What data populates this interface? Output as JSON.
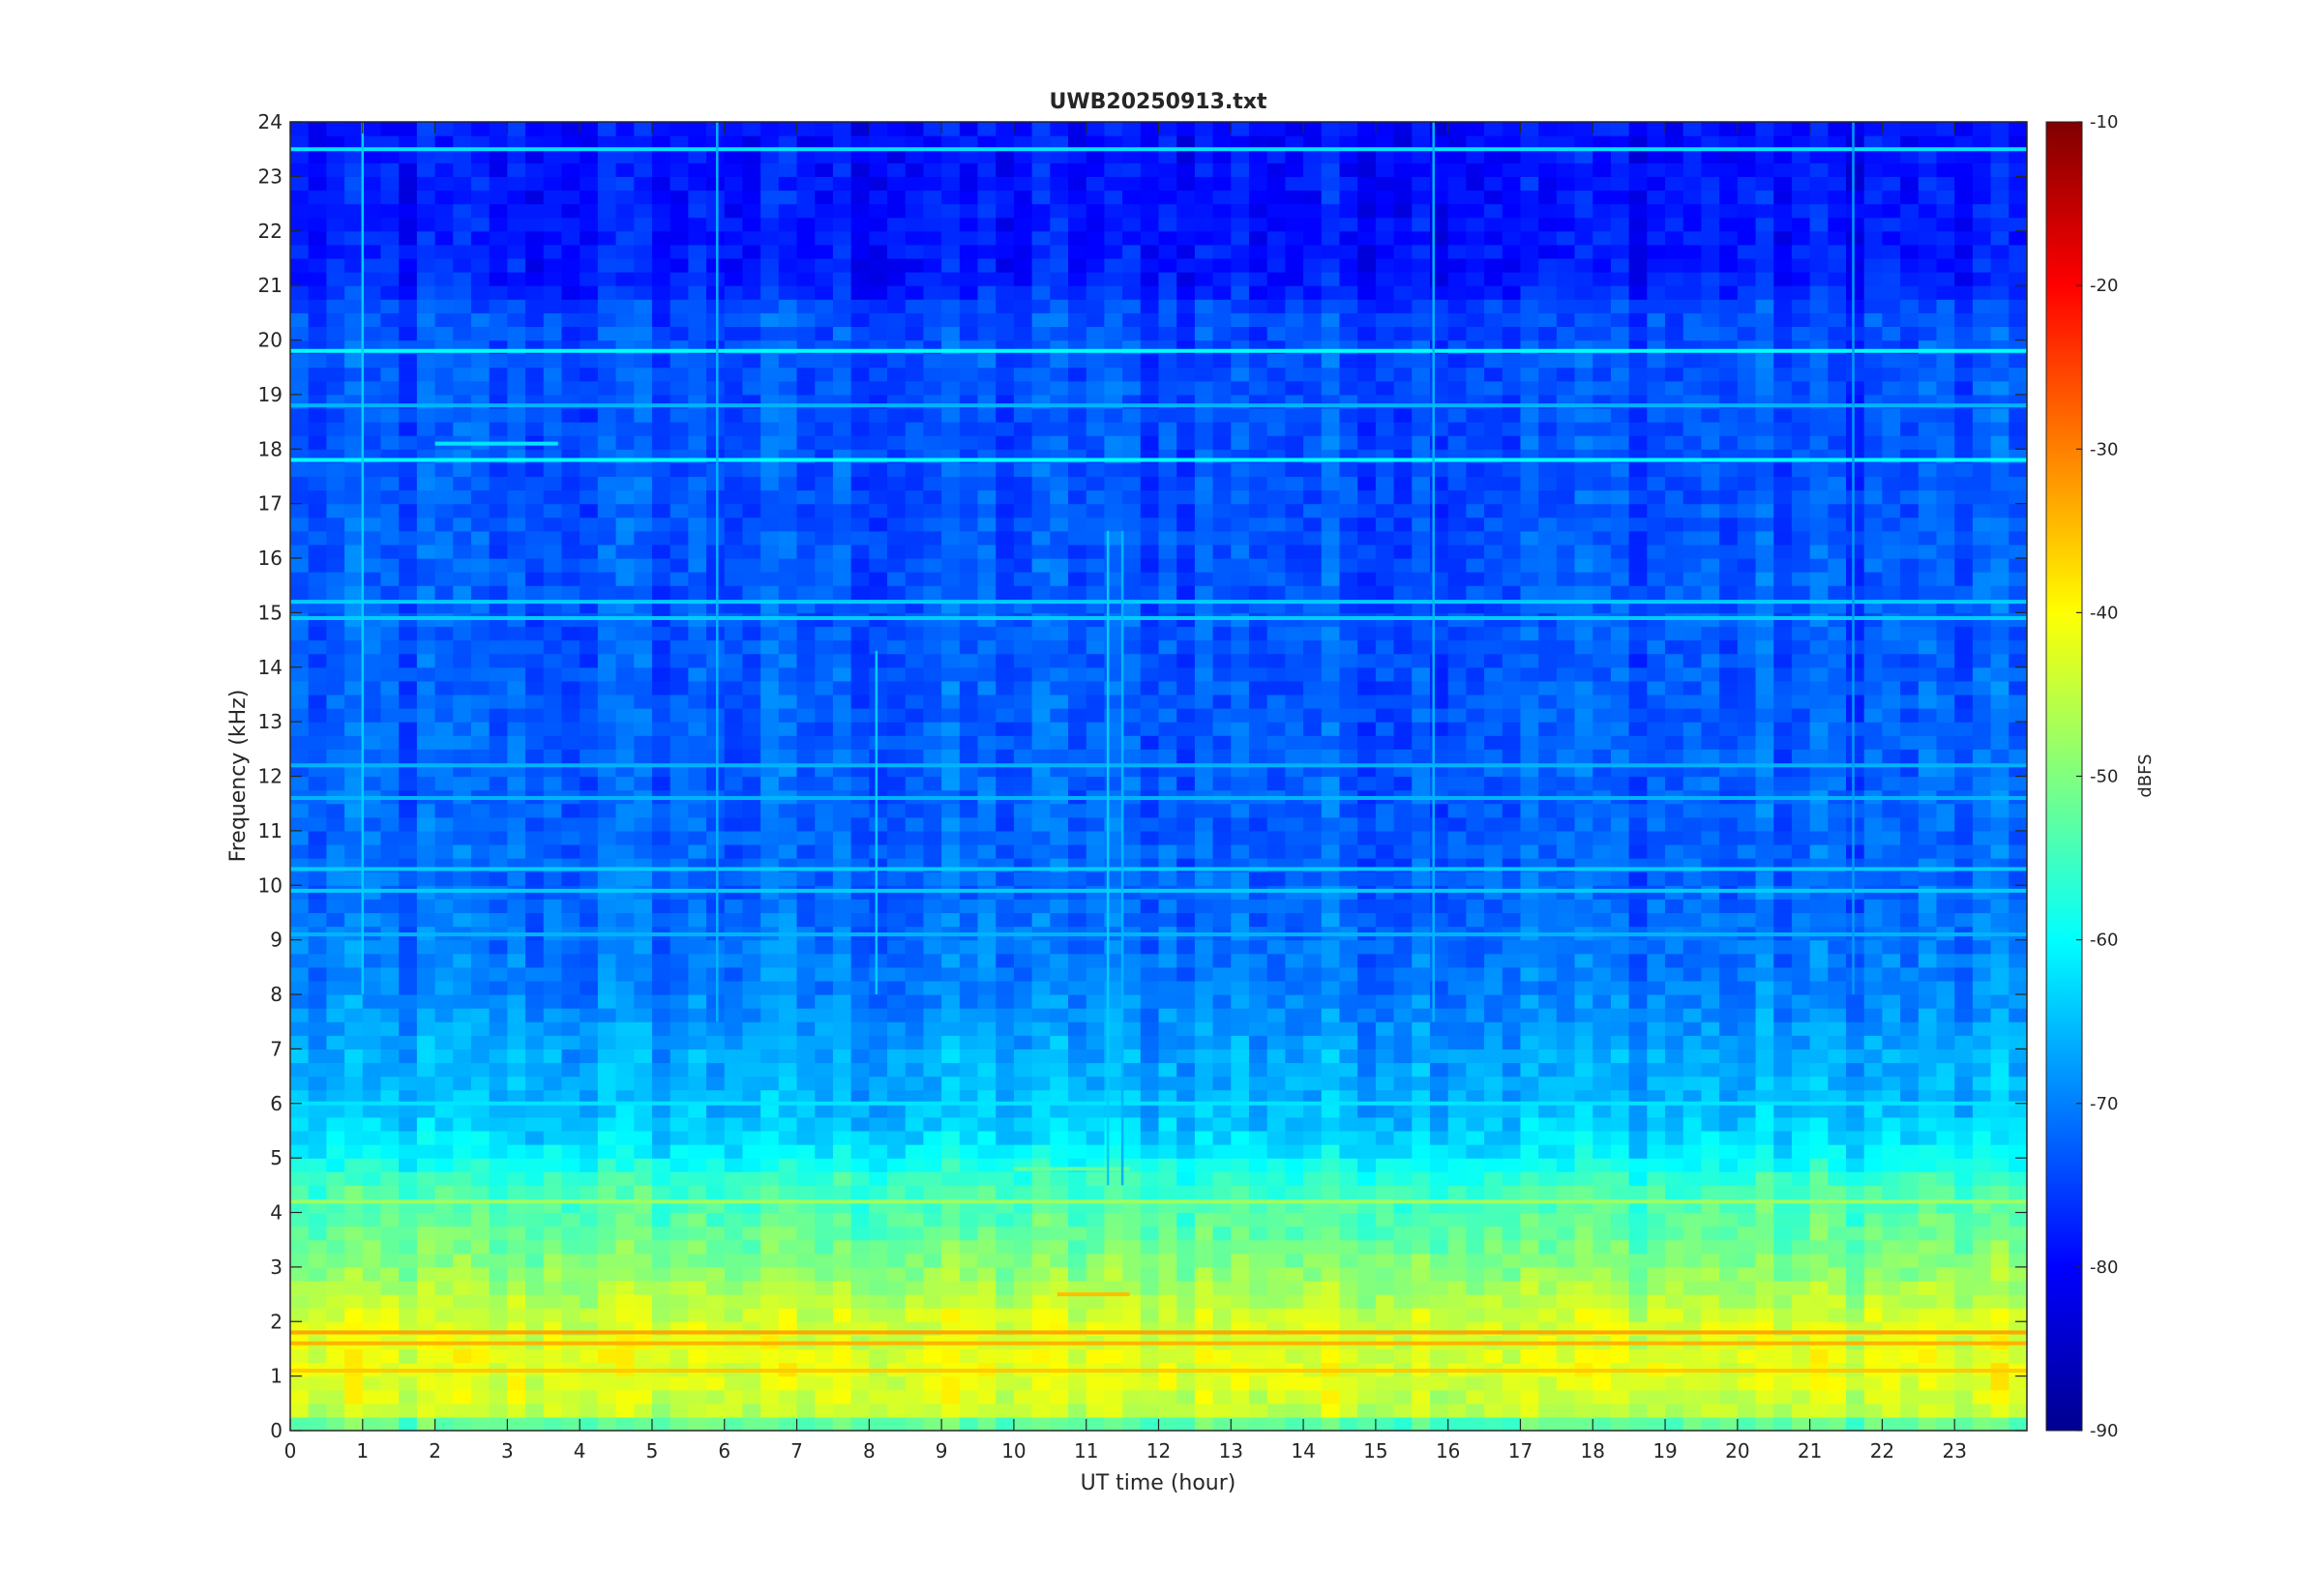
{
  "chart_data": {
    "type": "heatmap",
    "title": "UWB20250913.txt",
    "xlabel": "UT time (hour)",
    "ylabel": "Frequency (kHz)",
    "xlim": [
      0,
      24
    ],
    "ylim": [
      0,
      24
    ],
    "x_ticks": [
      "0",
      "1",
      "2",
      "3",
      "4",
      "5",
      "6",
      "7",
      "8",
      "9",
      "10",
      "11",
      "12",
      "13",
      "14",
      "15",
      "16",
      "17",
      "18",
      "19",
      "20",
      "21",
      "22",
      "23"
    ],
    "y_ticks": [
      "0",
      "1",
      "2",
      "3",
      "4",
      "5",
      "6",
      "7",
      "8",
      "9",
      "10",
      "11",
      "12",
      "13",
      "14",
      "15",
      "16",
      "17",
      "18",
      "19",
      "20",
      "21",
      "22",
      "23",
      "24"
    ],
    "colorbar": {
      "label": "dBFS",
      "colormap": "jet",
      "range": [
        -90,
        -10
      ],
      "ticks": [
        "-10",
        "-20",
        "-30",
        "-40",
        "-50",
        "-60",
        "-70",
        "-80",
        "-90"
      ]
    },
    "background_profile": [
      {
        "f": 0.0,
        "db": -58
      },
      {
        "f": 0.3,
        "db": -45
      },
      {
        "f": 1.0,
        "db": -42
      },
      {
        "f": 2.0,
        "db": -43
      },
      {
        "f": 2.6,
        "db": -47
      },
      {
        "f": 3.5,
        "db": -52
      },
      {
        "f": 4.5,
        "db": -55
      },
      {
        "f": 5.2,
        "db": -62
      },
      {
        "f": 6.0,
        "db": -66
      },
      {
        "f": 7.0,
        "db": -67
      },
      {
        "f": 8.0,
        "db": -70
      },
      {
        "f": 10.0,
        "db": -72
      },
      {
        "f": 14.0,
        "db": -73
      },
      {
        "f": 20.5,
        "db": -74
      },
      {
        "f": 21.0,
        "db": -78
      },
      {
        "f": 24.0,
        "db": -79
      }
    ],
    "tone_lines": [
      {
        "freq": 19.8,
        "db": -60,
        "t_start": 0,
        "t_end": 24
      },
      {
        "freq": 23.5,
        "db": -62,
        "t_start": 0,
        "t_end": 24
      },
      {
        "freq": 17.8,
        "db": -60,
        "t_start": 0,
        "t_end": 24
      },
      {
        "freq": 18.1,
        "db": -62,
        "t_start": 2,
        "t_end": 3.7
      },
      {
        "freq": 18.8,
        "db": -66,
        "t_start": 0,
        "t_end": 24
      },
      {
        "freq": 15.2,
        "db": -64,
        "t_start": 0,
        "t_end": 24
      },
      {
        "freq": 14.9,
        "db": -64,
        "t_start": 0,
        "t_end": 24
      },
      {
        "freq": 12.2,
        "db": -66,
        "t_start": 0,
        "t_end": 24
      },
      {
        "freq": 11.6,
        "db": -66,
        "t_start": 0,
        "t_end": 24
      },
      {
        "freq": 10.3,
        "db": -64,
        "t_start": 0,
        "t_end": 24
      },
      {
        "freq": 9.9,
        "db": -64,
        "t_start": 0,
        "t_end": 24
      },
      {
        "freq": 9.1,
        "db": -66,
        "t_start": 0,
        "t_end": 24
      },
      {
        "freq": 6.0,
        "db": -62,
        "t_start": 0,
        "t_end": 24
      },
      {
        "freq": 4.8,
        "db": -52,
        "t_start": 10,
        "t_end": 11.6
      },
      {
        "freq": 4.2,
        "db": -48,
        "t_start": 0,
        "t_end": 24
      },
      {
        "freq": 2.5,
        "db": -35,
        "t_start": 10.6,
        "t_end": 11.6
      },
      {
        "freq": 1.8,
        "db": -33,
        "t_start": 0,
        "t_end": 24
      },
      {
        "freq": 1.6,
        "db": -34,
        "t_start": 0,
        "t_end": 24
      },
      {
        "freq": 1.1,
        "db": -36,
        "t_start": 0,
        "t_end": 24
      }
    ],
    "vertical_streaks": [
      {
        "t": 1.0,
        "f_min": 8.0,
        "f_max": 24,
        "db": -64
      },
      {
        "t": 5.9,
        "f_min": 7.5,
        "f_max": 24,
        "db": -66
      },
      {
        "t": 8.1,
        "f_min": 8.0,
        "f_max": 14.3,
        "db": -64
      },
      {
        "t": 11.3,
        "f_min": 4.5,
        "f_max": 16.5,
        "db": -64
      },
      {
        "t": 11.5,
        "f_min": 4.5,
        "f_max": 16.5,
        "db": -66
      },
      {
        "t": 15.8,
        "f_min": 7.5,
        "f_max": 24,
        "db": -66
      },
      {
        "t": 21.6,
        "f_min": 8.0,
        "f_max": 24,
        "db": -68
      }
    ],
    "grid": false
  }
}
